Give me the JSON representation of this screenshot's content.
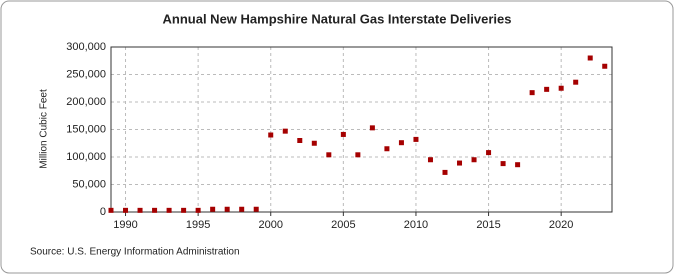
{
  "chart_data": {
    "type": "scatter",
    "title": "Annual New Hampshire Natural Gas Interstate Deliveries",
    "y_label": "Million Cubic Feet",
    "source": "Source: U.S. Energy Information Administration",
    "x": [
      1989,
      1990,
      1991,
      1992,
      1993,
      1994,
      1995,
      1996,
      1997,
      1998,
      1999,
      2000,
      2001,
      2002,
      2003,
      2004,
      2005,
      2006,
      2007,
      2008,
      2009,
      2010,
      2011,
      2012,
      2013,
      2014,
      2015,
      2016,
      2017,
      2018,
      2019,
      2020,
      2021,
      2022,
      2023
    ],
    "series": [
      {
        "name": "New Hampshire Natural Gas Interstate Deliveries",
        "color": "#a50000",
        "values": [
          3000,
          3000,
          3000,
          3000,
          3000,
          3000,
          3000,
          5000,
          5000,
          5000,
          5000,
          140000,
          147000,
          130000,
          125000,
          104000,
          141000,
          104000,
          153000,
          115000,
          126000,
          132000,
          95000,
          72000,
          89000,
          95000,
          108000,
          88000,
          86000,
          217000,
          223000,
          225000,
          236000,
          280000,
          265000
        ]
      }
    ],
    "xlim": [
      1989,
      2023.5
    ],
    "xticks": [
      1990,
      1995,
      2000,
      2005,
      2010,
      2015,
      2020
    ],
    "ylim": [
      0,
      300000
    ],
    "yticks": [
      0,
      {
        "value": 50000,
        "label": "50,000"
      },
      {
        "value": 100000,
        "label": "100,000"
      },
      {
        "value": 150000,
        "label": "150,000"
      },
      {
        "value": 200000,
        "label": "200,000"
      },
      {
        "value": 250000,
        "label": "250,000"
      },
      {
        "value": 300000,
        "label": "300,000"
      }
    ],
    "grid": true
  }
}
